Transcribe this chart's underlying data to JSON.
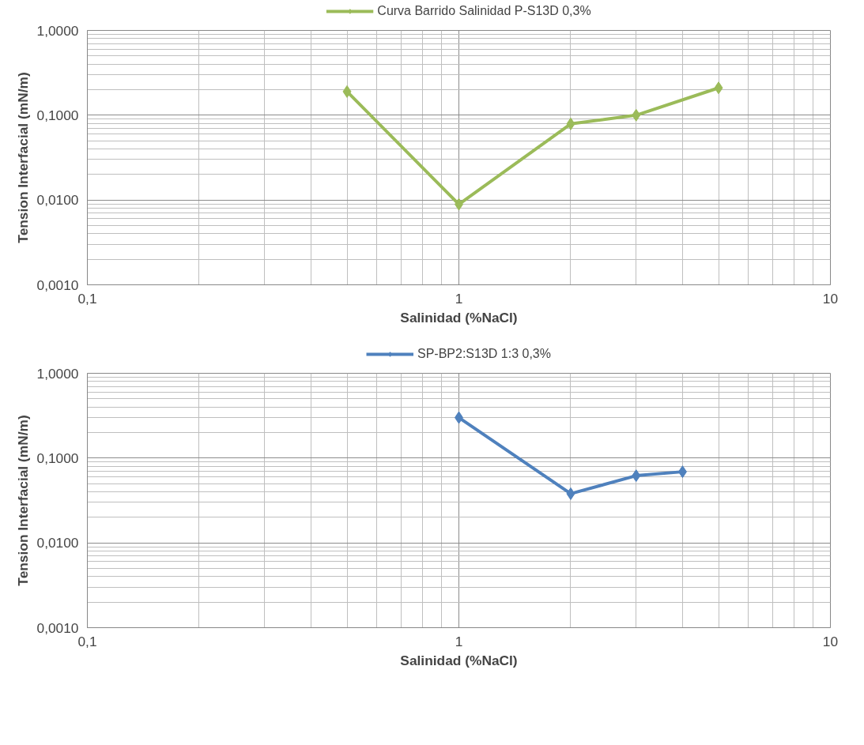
{
  "chart_data": [
    {
      "type": "line",
      "xlabel": "Salinidad (%NaCl)",
      "ylabel": "Tension Interfacial (mN/m)",
      "log": "xy",
      "grid": true,
      "legend": "top",
      "marker": "diamond",
      "line_style": "solid",
      "xlim": [
        0.1,
        10
      ],
      "xticks": [
        {
          "value": 0.1,
          "label": "0,1"
        },
        1,
        10
      ],
      "ylim": [
        0.001,
        1
      ],
      "yticks": [
        {
          "value": 0.001,
          "label": "0,0010"
        },
        {
          "value": 0.01,
          "label": "0,0100"
        },
        {
          "value": 0.1,
          "label": "0,1000"
        },
        {
          "value": 1,
          "label": "1,0000"
        }
      ],
      "series": [
        {
          "name": "Curva Barrido Salinidad P-S13D 0,3%",
          "color": "#9bbb59",
          "x": [
            0.5,
            1,
            2,
            3,
            5
          ],
          "values": [
            0.19,
            0.0089,
            0.079,
            0.1,
            0.21
          ]
        }
      ]
    },
    {
      "type": "line",
      "xlabel": "Salinidad (%NaCl)",
      "ylabel": "Tension Interfacial (mN/m)",
      "log": "xy",
      "grid": true,
      "legend": "top",
      "marker": "diamond",
      "line_style": "solid",
      "xlim": [
        0.1,
        10
      ],
      "xticks": [
        {
          "value": 0.1,
          "label": "0,1"
        },
        1,
        10
      ],
      "ylim": [
        0.001,
        1
      ],
      "yticks": [
        {
          "value": 0.001,
          "label": "0,0010"
        },
        {
          "value": 0.01,
          "label": "0,0100"
        },
        {
          "value": 0.1,
          "label": "0,1000"
        },
        {
          "value": 1,
          "label": "1,0000"
        }
      ],
      "series": [
        {
          "name": "SP-BP2:S13D 1:3 0,3%",
          "color": "#4f81bd",
          "x": [
            1,
            2,
            3,
            4
          ],
          "values": [
            0.3,
            0.038,
            0.062,
            0.069
          ]
        }
      ]
    }
  ]
}
